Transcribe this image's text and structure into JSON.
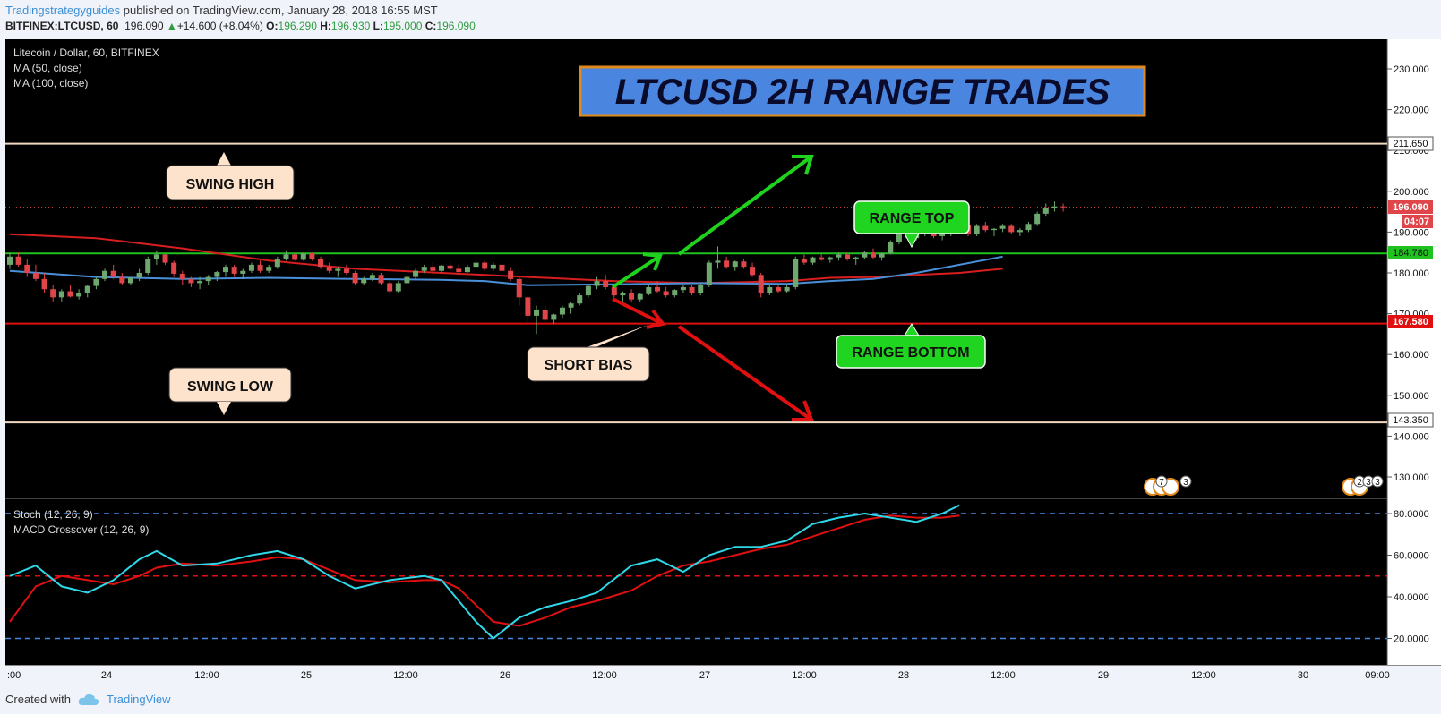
{
  "header": {
    "author": "Tradingstrategyguides",
    "published": " published on TradingView.com, January 28, 2018 16:55 MST",
    "symbol": "BITFINEX:LTCUSD, 60",
    "price": "196.090",
    "change": "+14.600 (+8.04%)",
    "o_label": "O:",
    "o": "196.290",
    "h_label": "H:",
    "h": "196.930",
    "l_label": "L:",
    "l": "195.000",
    "c_label": "C:",
    "c": "196.090"
  },
  "legend": {
    "title": "Litecoin / Dollar, 60, BITFINEX",
    "ma50": "MA (50, close)",
    "ma100": "MA (100, close)",
    "stoch": "Stoch (12, 26, 9)",
    "macd": "MACD Crossover (12, 26, 9)"
  },
  "annotations": {
    "title": "LTCUSD 2H RANGE TRADES",
    "swing_high": "SWING HIGH",
    "swing_low": "SWING LOW",
    "short_bias": "SHORT BIAS",
    "range_top": "RANGE TOP",
    "range_bottom": "RANGE BOTTOM",
    "event_1": "7",
    "event_2": "3",
    "event_3": "2",
    "event_4": "3",
    "event_5": "3"
  },
  "footer": {
    "created": "Created with",
    "brand": "TradingView"
  },
  "colors": {
    "background": "#000000",
    "up_candle": "#6fa86f",
    "down_candle": "#e0454a",
    "ma50": "#4a90d9",
    "ma100": "#d81e1e",
    "range_top_line": "#1fc21f",
    "range_bottom_line": "#e01010",
    "swing_line": "#f2d9c2",
    "title_box": "#4a86e0",
    "title_border": "#e08a1e",
    "label_box": "#fde2cc",
    "green_label": "#1fd51f",
    "stoch_k": "#2fd8e8",
    "stoch_d": "#e01010"
  },
  "chart_data": {
    "type": "candlestick",
    "ylim": [
      122,
      235
    ],
    "yticks": [
      "230.000",
      "220.000",
      "210.000",
      "200.000",
      "190.000",
      "180.000",
      "170.000",
      "160.000",
      "150.000",
      "140.000",
      "130.000"
    ],
    "xticks": [
      ":00",
      "24",
      "12:00",
      "25",
      "12:00",
      "26",
      "12:00",
      "27",
      "12:00",
      "28",
      "12:00",
      "29",
      "12:00",
      "30",
      "09:00"
    ],
    "price_labels": {
      "swing_high": "211.650",
      "last": "196.090",
      "countdown": "04:07",
      "range_top": "184.780",
      "range_bottom": "167.580",
      "swing_low": "143.350"
    },
    "levels": {
      "swing_high": 211.65,
      "range_top": 184.78,
      "range_bottom": 167.58,
      "swing_low": 143.35
    },
    "candles": [
      [
        182,
        185,
        181,
        184
      ],
      [
        184,
        185,
        181.5,
        182
      ],
      [
        182,
        183.5,
        179,
        180
      ],
      [
        180,
        182,
        178,
        178.5
      ],
      [
        178.5,
        180,
        175,
        176
      ],
      [
        176,
        177,
        173,
        174
      ],
      [
        174,
        176,
        173,
        175.5
      ],
      [
        175.5,
        177,
        174,
        174.2
      ],
      [
        174.2,
        176,
        173.5,
        175
      ],
      [
        175,
        177,
        174,
        176.8
      ],
      [
        176.8,
        179,
        176,
        178.5
      ],
      [
        178.5,
        181,
        178,
        180.5
      ],
      [
        180.5,
        182,
        178.5,
        179
      ],
      [
        179,
        180,
        177,
        177.5
      ],
      [
        177.5,
        179,
        177,
        178.8
      ],
      [
        178.8,
        181,
        178,
        180
      ],
      [
        180,
        184,
        179.5,
        183.5
      ],
      [
        183.5,
        185.5,
        182,
        184.5
      ],
      [
        184.5,
        185,
        182,
        182.5
      ],
      [
        182.5,
        183,
        179,
        179.8
      ],
      [
        179.8,
        180.5,
        177,
        178.5
      ],
      [
        178.5,
        179,
        176.5,
        177.5
      ],
      [
        177.5,
        179,
        176,
        178
      ],
      [
        178,
        179.5,
        177,
        179
      ],
      [
        179,
        180.5,
        178,
        180.2
      ],
      [
        180.2,
        182,
        179,
        181.5
      ],
      [
        181.5,
        182,
        179,
        179.8
      ],
      [
        179.8,
        181,
        178.5,
        180.5
      ],
      [
        180.5,
        182.5,
        180,
        182
      ],
      [
        182,
        183,
        180,
        180.5
      ],
      [
        180.5,
        182,
        180,
        181.5
      ],
      [
        181.5,
        184,
        181,
        183.5
      ],
      [
        183.5,
        185.5,
        183,
        184.5
      ],
      [
        184.5,
        185,
        183,
        183.2
      ],
      [
        183.2,
        185,
        183,
        184.8
      ],
      [
        184.8,
        185,
        183,
        183.5
      ],
      [
        183.5,
        184,
        181,
        181.5
      ],
      [
        181.5,
        182.5,
        180,
        180.5
      ],
      [
        180.5,
        181.5,
        179,
        181
      ],
      [
        181,
        182,
        179.5,
        180
      ],
      [
        180,
        180.5,
        177,
        177.5
      ],
      [
        177.5,
        179,
        177,
        178.5
      ],
      [
        178.5,
        180,
        178,
        179.5
      ],
      [
        179.5,
        180,
        177,
        177.5
      ],
      [
        177.5,
        178,
        175,
        175.5
      ],
      [
        175.5,
        178,
        175,
        177.5
      ],
      [
        177.5,
        180,
        177,
        179
      ],
      [
        179,
        181,
        178.5,
        180.5
      ],
      [
        180.5,
        182,
        180,
        181.5
      ],
      [
        181.5,
        182.5,
        180,
        180.5
      ],
      [
        180.5,
        182,
        180,
        181.8
      ],
      [
        181.8,
        182.5,
        180.5,
        181
      ],
      [
        181,
        182,
        179.5,
        180.2
      ],
      [
        180.2,
        182,
        180,
        181.5
      ],
      [
        181.5,
        183,
        181,
        182.5
      ],
      [
        182.5,
        183,
        180.5,
        181
      ],
      [
        181,
        182.5,
        180.5,
        182
      ],
      [
        182,
        182.5,
        180,
        180.5
      ],
      [
        180.5,
        181.5,
        178,
        178.5
      ],
      [
        178.5,
        179,
        172,
        174
      ],
      [
        174,
        174.5,
        168,
        169.5
      ],
      [
        169.5,
        172,
        165,
        171
      ],
      [
        171,
        172,
        168,
        168.5
      ],
      [
        168.5,
        170,
        167.5,
        169.8
      ],
      [
        169.8,
        172,
        169,
        171.5
      ],
      [
        171.5,
        173,
        170,
        172.5
      ],
      [
        172.5,
        175,
        172,
        174.5
      ],
      [
        174.5,
        177,
        174,
        176.8
      ],
      [
        176.8,
        179,
        176,
        178
      ],
      [
        178,
        179.5,
        176,
        176.5
      ],
      [
        176.5,
        177,
        174,
        174.5
      ],
      [
        174.5,
        175.5,
        173,
        175
      ],
      [
        175,
        176,
        173,
        173.5
      ],
      [
        173.5,
        175,
        173,
        174.8
      ],
      [
        174.8,
        177,
        174.5,
        176.5
      ],
      [
        176.5,
        178,
        175,
        175.5
      ],
      [
        175.5,
        176.5,
        174,
        174.5
      ],
      [
        174.5,
        176,
        174,
        175.8
      ],
      [
        175.8,
        177,
        175,
        176.5
      ],
      [
        176.5,
        177,
        174.5,
        175
      ],
      [
        175,
        177.5,
        174.5,
        177
      ],
      [
        177,
        183,
        176.5,
        182.5
      ],
      [
        182.5,
        186.5,
        181,
        183
      ],
      [
        183,
        184,
        181,
        181.5
      ],
      [
        181.5,
        183,
        180.5,
        182.8
      ],
      [
        182.8,
        183.5,
        181,
        181.5
      ],
      [
        181.5,
        182.5,
        179,
        179.5
      ],
      [
        179.5,
        180,
        174,
        175
      ],
      [
        175,
        177,
        174.5,
        176.5
      ],
      [
        176.5,
        177,
        175,
        175.5
      ],
      [
        175.5,
        177,
        175,
        176.5
      ],
      [
        176.5,
        184,
        176,
        183.5
      ],
      [
        183.5,
        184.5,
        182,
        182.5
      ],
      [
        182.5,
        184,
        182,
        183.8
      ],
      [
        183.8,
        184.5,
        183,
        183.2
      ],
      [
        183.2,
        184,
        182.5,
        183.8
      ],
      [
        183.8,
        185,
        183,
        184.5
      ],
      [
        184.5,
        185,
        183,
        183.5
      ],
      [
        183.5,
        184,
        182,
        183.8
      ],
      [
        183.8,
        185.5,
        183.5,
        185
      ],
      [
        185,
        186,
        183.5,
        183.8
      ],
      [
        183.8,
        185,
        183,
        184.8
      ],
      [
        184.8,
        188,
        184.5,
        187.5
      ],
      [
        187.5,
        190.5,
        187,
        190
      ],
      [
        190,
        191,
        188,
        188.5
      ],
      [
        188.5,
        190.5,
        188,
        190.2
      ],
      [
        190.2,
        192,
        189,
        191.5
      ],
      [
        191.5,
        192,
        188.5,
        189
      ],
      [
        189,
        190,
        188,
        189.8
      ],
      [
        189.8,
        191,
        189,
        190.5
      ],
      [
        190.5,
        192,
        190,
        191.8
      ],
      [
        191.8,
        192,
        189,
        189.5
      ],
      [
        189.5,
        192,
        189,
        191.5
      ],
      [
        191.5,
        192.5,
        190,
        190.5
      ],
      [
        190.5,
        191,
        189,
        190.8
      ],
      [
        190.8,
        192,
        190,
        191.5
      ],
      [
        191.5,
        192,
        189.5,
        190
      ],
      [
        190,
        191,
        189,
        190.5
      ],
      [
        190.5,
        192.5,
        190,
        192
      ],
      [
        192,
        195,
        191.5,
        194.5
      ],
      [
        194.5,
        197,
        194,
        196
      ],
      [
        196,
        197.5,
        195,
        196.3
      ],
      [
        196.3,
        197,
        195,
        196.09
      ]
    ],
    "ma50": [
      [
        0,
        180.5
      ],
      [
        10,
        179
      ],
      [
        20,
        178.5
      ],
      [
        30,
        178.8
      ],
      [
        40,
        178.5
      ],
      [
        50,
        178.3
      ],
      [
        55,
        178
      ],
      [
        60,
        177
      ],
      [
        70,
        177.2
      ],
      [
        80,
        177.5
      ],
      [
        90,
        177.3
      ],
      [
        95,
        178
      ],
      [
        100,
        178.5
      ],
      [
        105,
        180
      ],
      [
        110,
        182
      ],
      [
        115,
        184
      ]
    ],
    "ma100": [
      [
        0,
        189.5
      ],
      [
        10,
        188.5
      ],
      [
        20,
        186
      ],
      [
        30,
        183
      ],
      [
        40,
        181
      ],
      [
        50,
        180
      ],
      [
        55,
        179.5
      ],
      [
        60,
        179
      ],
      [
        70,
        178
      ],
      [
        80,
        177.5
      ],
      [
        90,
        178
      ],
      [
        95,
        178.8
      ],
      [
        100,
        179
      ],
      [
        105,
        179.5
      ],
      [
        110,
        180
      ],
      [
        115,
        181
      ]
    ],
    "indicator": {
      "ylim": [
        15,
        88
      ],
      "yticks": [
        "80.0000",
        "60.0000",
        "40.0000",
        "20.0000"
      ],
      "levels": [
        80,
        50,
        20
      ],
      "stoch_k": [
        [
          0,
          50
        ],
        [
          3,
          55
        ],
        [
          6,
          45
        ],
        [
          9,
          42
        ],
        [
          12,
          48
        ],
        [
          15,
          58
        ],
        [
          17,
          62
        ],
        [
          20,
          55
        ],
        [
          24,
          56
        ],
        [
          28,
          60
        ],
        [
          31,
          62
        ],
        [
          34,
          58
        ],
        [
          37,
          50
        ],
        [
          40,
          44
        ],
        [
          44,
          48
        ],
        [
          48,
          50
        ],
        [
          50,
          48
        ],
        [
          52,
          38
        ],
        [
          54,
          28
        ],
        [
          56,
          20
        ],
        [
          59,
          30
        ],
        [
          62,
          35
        ],
        [
          65,
          38
        ],
        [
          68,
          42
        ],
        [
          72,
          55
        ],
        [
          75,
          58
        ],
        [
          78,
          52
        ],
        [
          81,
          60
        ],
        [
          84,
          64
        ],
        [
          87,
          64
        ],
        [
          90,
          67
        ],
        [
          93,
          75
        ],
        [
          96,
          78
        ],
        [
          99,
          80
        ],
        [
          102,
          78
        ],
        [
          105,
          76
        ],
        [
          108,
          80
        ],
        [
          110,
          84
        ]
      ],
      "stoch_d": [
        [
          0,
          28
        ],
        [
          3,
          45
        ],
        [
          6,
          50
        ],
        [
          9,
          48
        ],
        [
          12,
          46
        ],
        [
          15,
          50
        ],
        [
          17,
          54
        ],
        [
          20,
          56
        ],
        [
          24,
          55
        ],
        [
          28,
          57
        ],
        [
          31,
          59
        ],
        [
          34,
          58
        ],
        [
          37,
          53
        ],
        [
          40,
          48
        ],
        [
          44,
          47
        ],
        [
          48,
          48
        ],
        [
          50,
          48
        ],
        [
          52,
          44
        ],
        [
          54,
          36
        ],
        [
          56,
          28
        ],
        [
          59,
          26
        ],
        [
          62,
          30
        ],
        [
          65,
          35
        ],
        [
          68,
          38
        ],
        [
          72,
          43
        ],
        [
          75,
          50
        ],
        [
          78,
          55
        ],
        [
          81,
          57
        ],
        [
          84,
          60
        ],
        [
          87,
          63
        ],
        [
          90,
          65
        ],
        [
          93,
          69
        ],
        [
          96,
          73
        ],
        [
          99,
          77
        ],
        [
          102,
          79
        ],
        [
          105,
          78
        ],
        [
          108,
          78
        ],
        [
          110,
          79
        ]
      ]
    }
  }
}
